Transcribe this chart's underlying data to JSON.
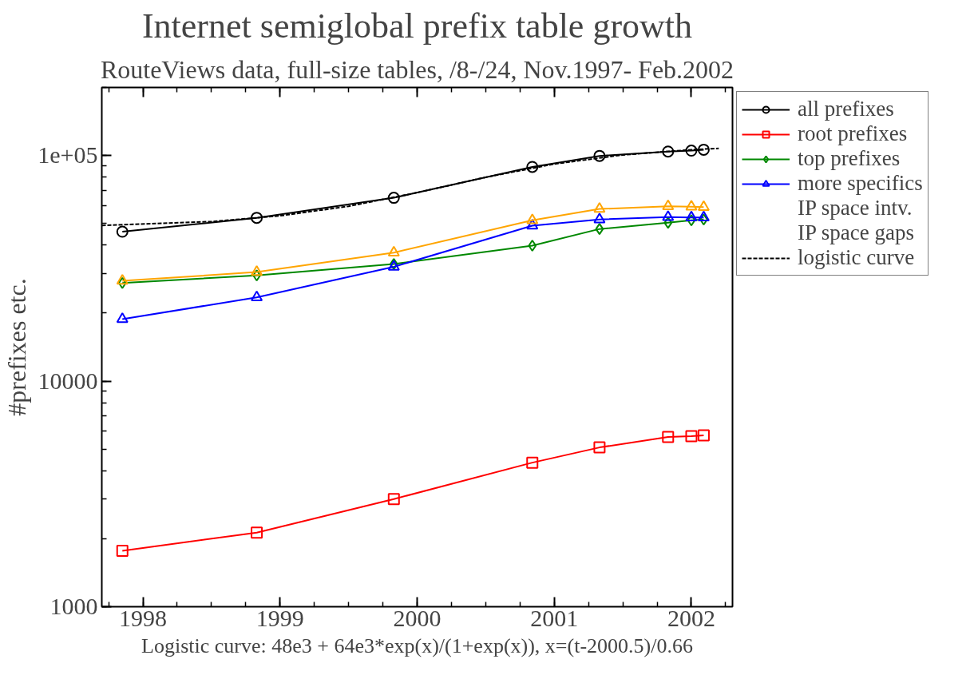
{
  "chart_data": {
    "type": "line",
    "title": "Internet semiglobal prefix table growth",
    "subtitle": "RouteViews data, full-size tables, /8-/24, Nov.1997- Feb.2002",
    "ylabel": "#prefixes etc.",
    "x": [
      1997.85,
      1998.83,
      1999.83,
      2000.84,
      2001.33,
      2001.83,
      2002.0,
      2002.09
    ],
    "series": [
      {
        "name": "all prefixes",
        "color": "#000000",
        "marker": "circle",
        "values": [
          45900,
          52900,
          64900,
          88900,
          99500,
          104000,
          105000,
          106000
        ]
      },
      {
        "name": "root prefixes",
        "color": "#ff0000",
        "marker": "square",
        "values": [
          1770,
          2130,
          3000,
          4350,
          5080,
          5650,
          5700,
          5750
        ]
      },
      {
        "name": "top prefixes",
        "color": "#008800",
        "marker": "diamond",
        "values": [
          27200,
          29400,
          33000,
          39800,
          47200,
          50300,
          51600,
          52000
        ]
      },
      {
        "name": "more specifics",
        "color": "#0000ff",
        "marker": "triangle",
        "values": [
          18800,
          23500,
          32100,
          48800,
          52000,
          53300,
          53100,
          53100
        ]
      },
      {
        "color": "#ffa500",
        "marker": "triangle",
        "values": [
          27800,
          30400,
          37100,
          51600,
          57900,
          59500,
          59300,
          59000
        ]
      },
      {
        "name": "logistic curve",
        "color": "#000000",
        "marker": "none",
        "line_style": "dashed",
        "x": [
          1997.7,
          1998.5,
          1999.0,
          1999.5,
          2000.0,
          2000.5,
          2001.0,
          2001.5,
          2002.0,
          2002.2
        ],
        "values": [
          48900,
          50900,
          54000,
          59500,
          68400,
          80000,
          91600,
          100500,
          106000,
          107400
        ]
      }
    ],
    "legend_title": null,
    "annotations": [
      "IP space intv.",
      "IP space gaps",
      "Logistic curve: 48e3 + 64e3*exp(x)/(1+exp(x)), x=(t-2000.5)/0.66"
    ],
    "log": "y",
    "xlim": [
      1997.7,
      2002.3
    ],
    "xticks": [
      1998,
      1999,
      2000,
      2001,
      2002
    ],
    "ylim": [
      1000,
      200000
    ],
    "yticks": [
      1000,
      10000,
      {
        "value": 100000,
        "label": "1e+05"
      }
    ],
    "grid": false,
    "legend": "top right"
  }
}
